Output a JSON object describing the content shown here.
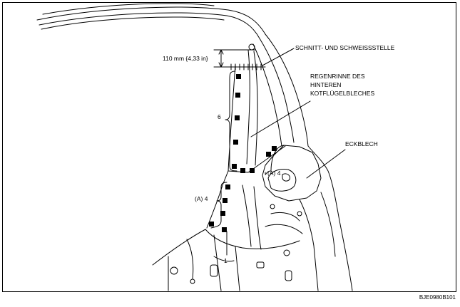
{
  "labels": {
    "dimension": "110 mm {4,33 in}",
    "cut_weld": "SCHNITT- UND SCHWEISSSTELLE",
    "gutter_line1": "REGENRINNE DES",
    "gutter_line2": "HINTEREN",
    "gutter_line3": "KOTFLÜGELBLECHES",
    "corner_panel": "ECKBLECH",
    "count_six": "6",
    "group_a_upper": "(A) 4",
    "group_a_lower": "(A) 4",
    "count_one": "1"
  },
  "figure_code": "BJE0980B101"
}
